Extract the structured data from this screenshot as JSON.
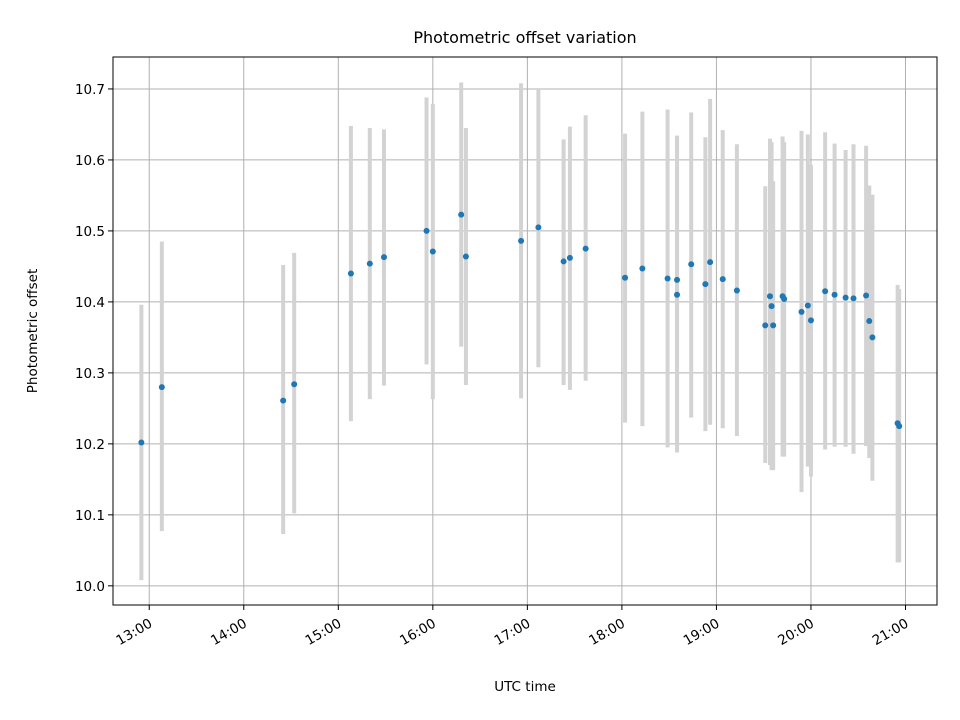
{
  "chart_data": {
    "type": "scatter",
    "title": "Photometric offset variation",
    "xlabel": "UTC time",
    "ylabel": "Photometric offset",
    "xlim": [
      "12:37",
      "21:20"
    ],
    "ylim": [
      9.973,
      10.745
    ],
    "x_ticks": [
      "13:00",
      "14:00",
      "15:00",
      "16:00",
      "17:00",
      "18:00",
      "19:00",
      "20:00",
      "21:00"
    ],
    "y_ticks": [
      "10.0",
      "10.1",
      "10.2",
      "10.3",
      "10.4",
      "10.5",
      "10.6",
      "10.7"
    ],
    "grid": true,
    "colors": {
      "points": "#1f77b4",
      "error_bars": "#d3d3d3"
    },
    "series": [
      {
        "x": [
          "12:55",
          "13:08",
          "14:25",
          "14:32",
          "15:08",
          "15:20",
          "15:29",
          "15:56",
          "16:00",
          "16:18",
          "16:21",
          "16:56",
          "17:07",
          "17:23",
          "17:27",
          "17:37",
          "18:02",
          "18:13",
          "18:29",
          "18:35",
          "18:35",
          "18:44",
          "18:53",
          "18:56",
          "19:04",
          "19:13",
          "19:31",
          "19:34",
          "19:35",
          "19:36",
          "19:42",
          "19:43",
          "19:54",
          "19:58",
          "20:00",
          "20:09",
          "20:15",
          "20:22",
          "20:27",
          "20:35",
          "20:37",
          "20:39",
          "20:55",
          "20:56"
        ],
        "y": [
          10.202,
          10.28,
          10.261,
          10.284,
          10.44,
          10.454,
          10.463,
          10.5,
          10.471,
          10.523,
          10.464,
          10.486,
          10.505,
          10.457,
          10.462,
          10.475,
          10.434,
          10.447,
          10.433,
          10.431,
          10.41,
          10.453,
          10.425,
          10.456,
          10.432,
          10.416,
          10.367,
          10.408,
          10.394,
          10.367,
          10.408,
          10.404,
          10.386,
          10.395,
          10.374,
          10.415,
          10.41,
          10.406,
          10.405,
          10.409,
          10.373,
          10.35,
          10.229,
          10.225
        ],
        "y_low": [
          10.008,
          10.077,
          10.073,
          10.102,
          10.232,
          10.263,
          10.282,
          10.312,
          10.263,
          10.337,
          10.283,
          10.264,
          10.308,
          10.283,
          10.276,
          10.289,
          10.23,
          10.225,
          10.195,
          10.188,
          10.188,
          10.237,
          10.218,
          10.227,
          10.222,
          10.211,
          10.173,
          10.17,
          10.163,
          10.163,
          10.182,
          10.182,
          10.132,
          10.168,
          10.154,
          10.192,
          10.196,
          10.196,
          10.186,
          10.197,
          10.18,
          10.148,
          10.033,
          10.033
        ],
        "y_high": [
          10.396,
          10.485,
          10.452,
          10.469,
          10.648,
          10.645,
          10.643,
          10.688,
          10.679,
          10.709,
          10.645,
          10.708,
          10.7,
          10.629,
          10.647,
          10.663,
          10.637,
          10.668,
          10.671,
          10.634,
          10.634,
          10.667,
          10.632,
          10.686,
          10.642,
          10.622,
          10.563,
          10.63,
          10.625,
          10.57,
          10.633,
          10.625,
          10.641,
          10.636,
          10.593,
          10.639,
          10.623,
          10.614,
          10.622,
          10.62,
          10.564,
          10.551,
          10.424,
          10.418
        ]
      }
    ]
  }
}
